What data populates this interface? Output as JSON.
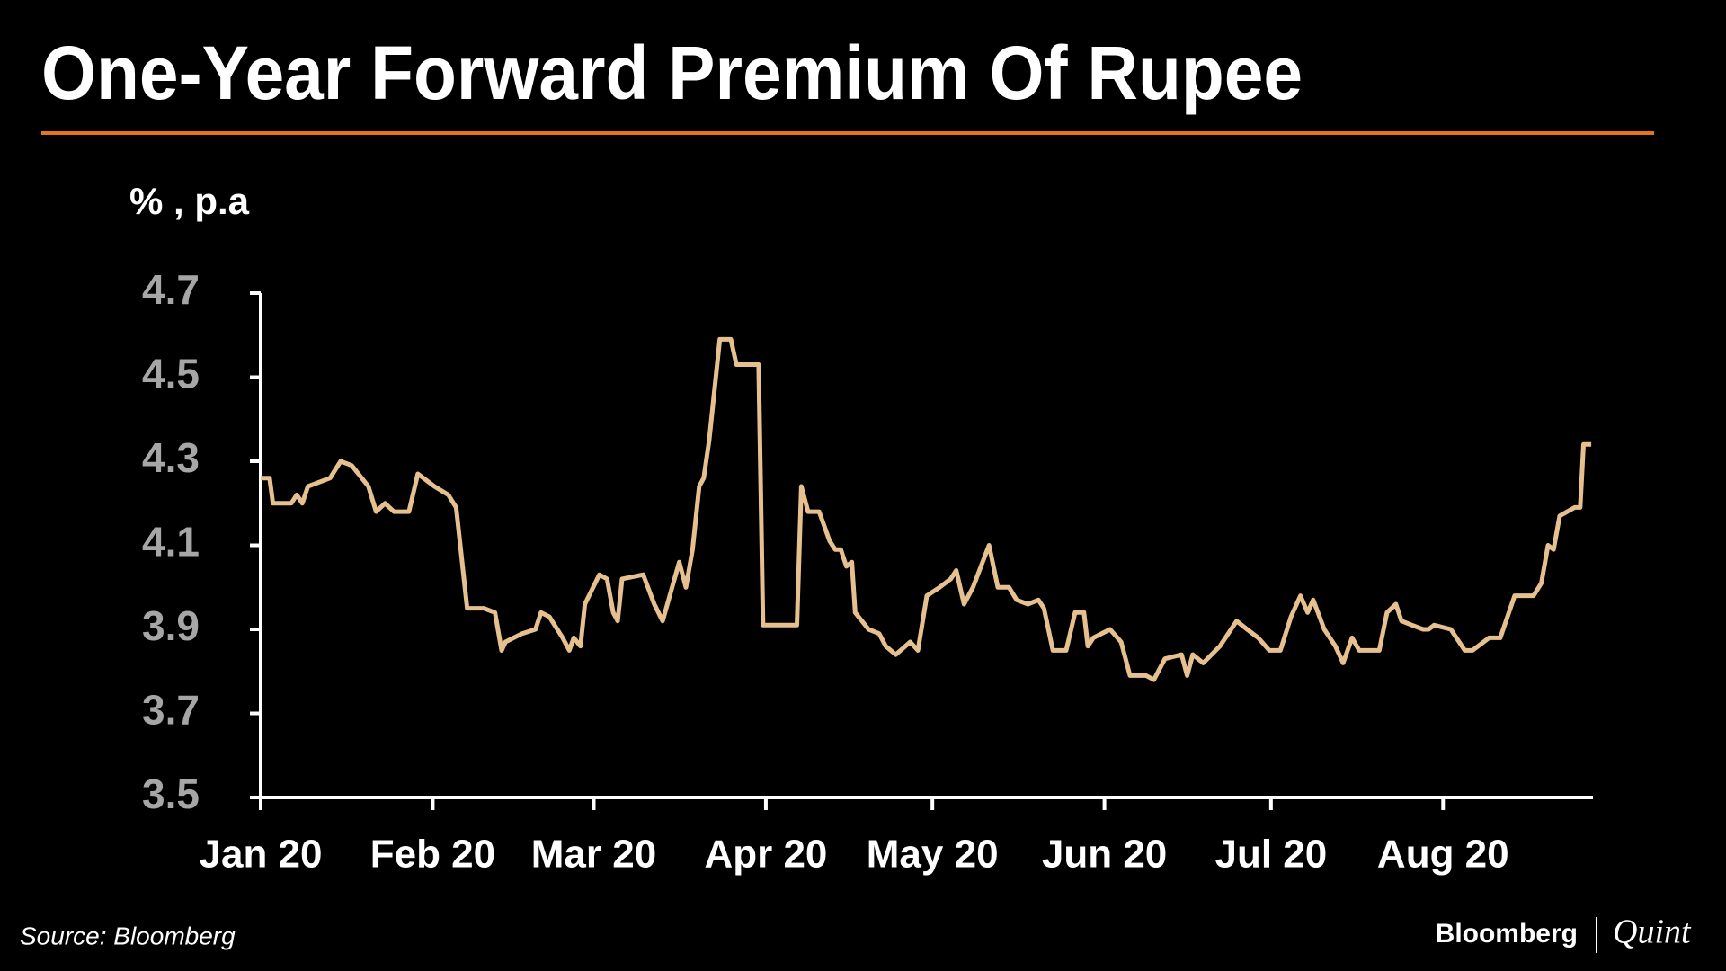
{
  "chart_data": {
    "type": "line",
    "title": "One-Year Forward Premium Of Rupee",
    "y_label": "% , p.a",
    "source": "Source: Bloomberg",
    "brand": [
      "Bloomberg",
      "Quint"
    ],
    "xlim": [
      0,
      240
    ],
    "xticks": [
      {
        "value": 0,
        "label": "Jan 20"
      },
      {
        "value": 31,
        "label": "Feb 20"
      },
      {
        "value": 60,
        "label": "Mar 20"
      },
      {
        "value": 91,
        "label": "Apr 20"
      },
      {
        "value": 121,
        "label": "May 20"
      },
      {
        "value": 152,
        "label": "Jun 20"
      },
      {
        "value": 182,
        "label": "Jul 20"
      },
      {
        "value": 213,
        "label": "Aug 20"
      }
    ],
    "ylim": [
      3.5,
      4.7
    ],
    "yticks": [
      3.5,
      3.7,
      3.9,
      4.1,
      4.3,
      4.5,
      4.7
    ],
    "series": [
      {
        "name": "One-Year Forward Premium",
        "color": "#e6c08f",
        "x": [
          0,
          1.6,
          2.2,
          5.5,
          6.5,
          7.5,
          8.5,
          12.5,
          14.4,
          16.4,
          19.4,
          20.8,
          22.4,
          24,
          26.7,
          28.3,
          31.3,
          33.8,
          35.2,
          37.2,
          40.2,
          42.2,
          43.4,
          44.1,
          47.1,
          49.5,
          50.5,
          52,
          54.4,
          55.6,
          56.4,
          57.6,
          58.4,
          61,
          62.4,
          63.5,
          64.3,
          65.1,
          68.9,
          70.9,
          72.4,
          75.4,
          76.6,
          77.8,
          79,
          79.8,
          80.8,
          82.7,
          84.7,
          85.7,
          89.7,
          90.5,
          96.6,
          97.4,
          98.6,
          100.6,
          102.5,
          103.5,
          104.5,
          105.5,
          106.5,
          107.1,
          109.5,
          111.4,
          112.6,
          114.4,
          117,
          118.4,
          120,
          122.3,
          124.3,
          125.3,
          126.7,
          128.3,
          131.2,
          132.8,
          134.8,
          136.2,
          138.2,
          140.1,
          141.1,
          142.7,
          145.1,
          146.7,
          148.3,
          149,
          150,
          153,
          155,
          156.6,
          159.5,
          160.9,
          162.9,
          165.9,
          166.9,
          167.9,
          169.8,
          172.8,
          175.8,
          177.7,
          179.7,
          181.7,
          183.7,
          185.6,
          187.3,
          188.6,
          189.6,
          191.6,
          193.6,
          195,
          196.6,
          197.9,
          201.5,
          202.9,
          204.5,
          205.5,
          207.4,
          209.4,
          210.4,
          211.4,
          214.4,
          216.9,
          218.3,
          221.3,
          223.3,
          225.9,
          229.3,
          230.7,
          231.9,
          232.9,
          234,
          236.7,
          237.7,
          238.3,
          239.7
        ],
        "values": [
          4.26,
          4.26,
          4.2,
          4.2,
          4.22,
          4.2,
          4.24,
          4.26,
          4.3,
          4.29,
          4.24,
          4.18,
          4.2,
          4.18,
          4.18,
          4.27,
          4.24,
          4.22,
          4.19,
          3.95,
          3.95,
          3.94,
          3.85,
          3.87,
          3.89,
          3.9,
          3.94,
          3.93,
          3.88,
          3.85,
          3.88,
          3.86,
          3.96,
          4.03,
          4.02,
          3.94,
          3.92,
          4.02,
          4.03,
          3.96,
          3.92,
          4.06,
          4.0,
          4.09,
          4.24,
          4.26,
          4.35,
          4.59,
          4.59,
          4.53,
          4.53,
          3.91,
          3.91,
          4.24,
          4.18,
          4.18,
          4.11,
          4.09,
          4.09,
          4.05,
          4.06,
          3.94,
          3.9,
          3.89,
          3.86,
          3.84,
          3.87,
          3.85,
          3.98,
          4.0,
          4.02,
          4.04,
          3.96,
          4.0,
          4.1,
          4.0,
          4.0,
          3.97,
          3.96,
          3.97,
          3.95,
          3.85,
          3.85,
          3.94,
          3.94,
          3.86,
          3.88,
          3.9,
          3.87,
          3.79,
          3.79,
          3.78,
          3.83,
          3.84,
          3.79,
          3.84,
          3.82,
          3.86,
          3.92,
          3.9,
          3.88,
          3.85,
          3.85,
          3.93,
          3.98,
          3.94,
          3.97,
          3.9,
          3.86,
          3.82,
          3.88,
          3.85,
          3.85,
          3.94,
          3.96,
          3.92,
          3.91,
          3.9,
          3.9,
          3.91,
          3.9,
          3.85,
          3.85,
          3.88,
          3.88,
          3.98,
          3.98,
          4.01,
          4.1,
          4.09,
          4.17,
          4.19,
          4.19,
          4.34,
          4.34
        ]
      }
    ]
  }
}
